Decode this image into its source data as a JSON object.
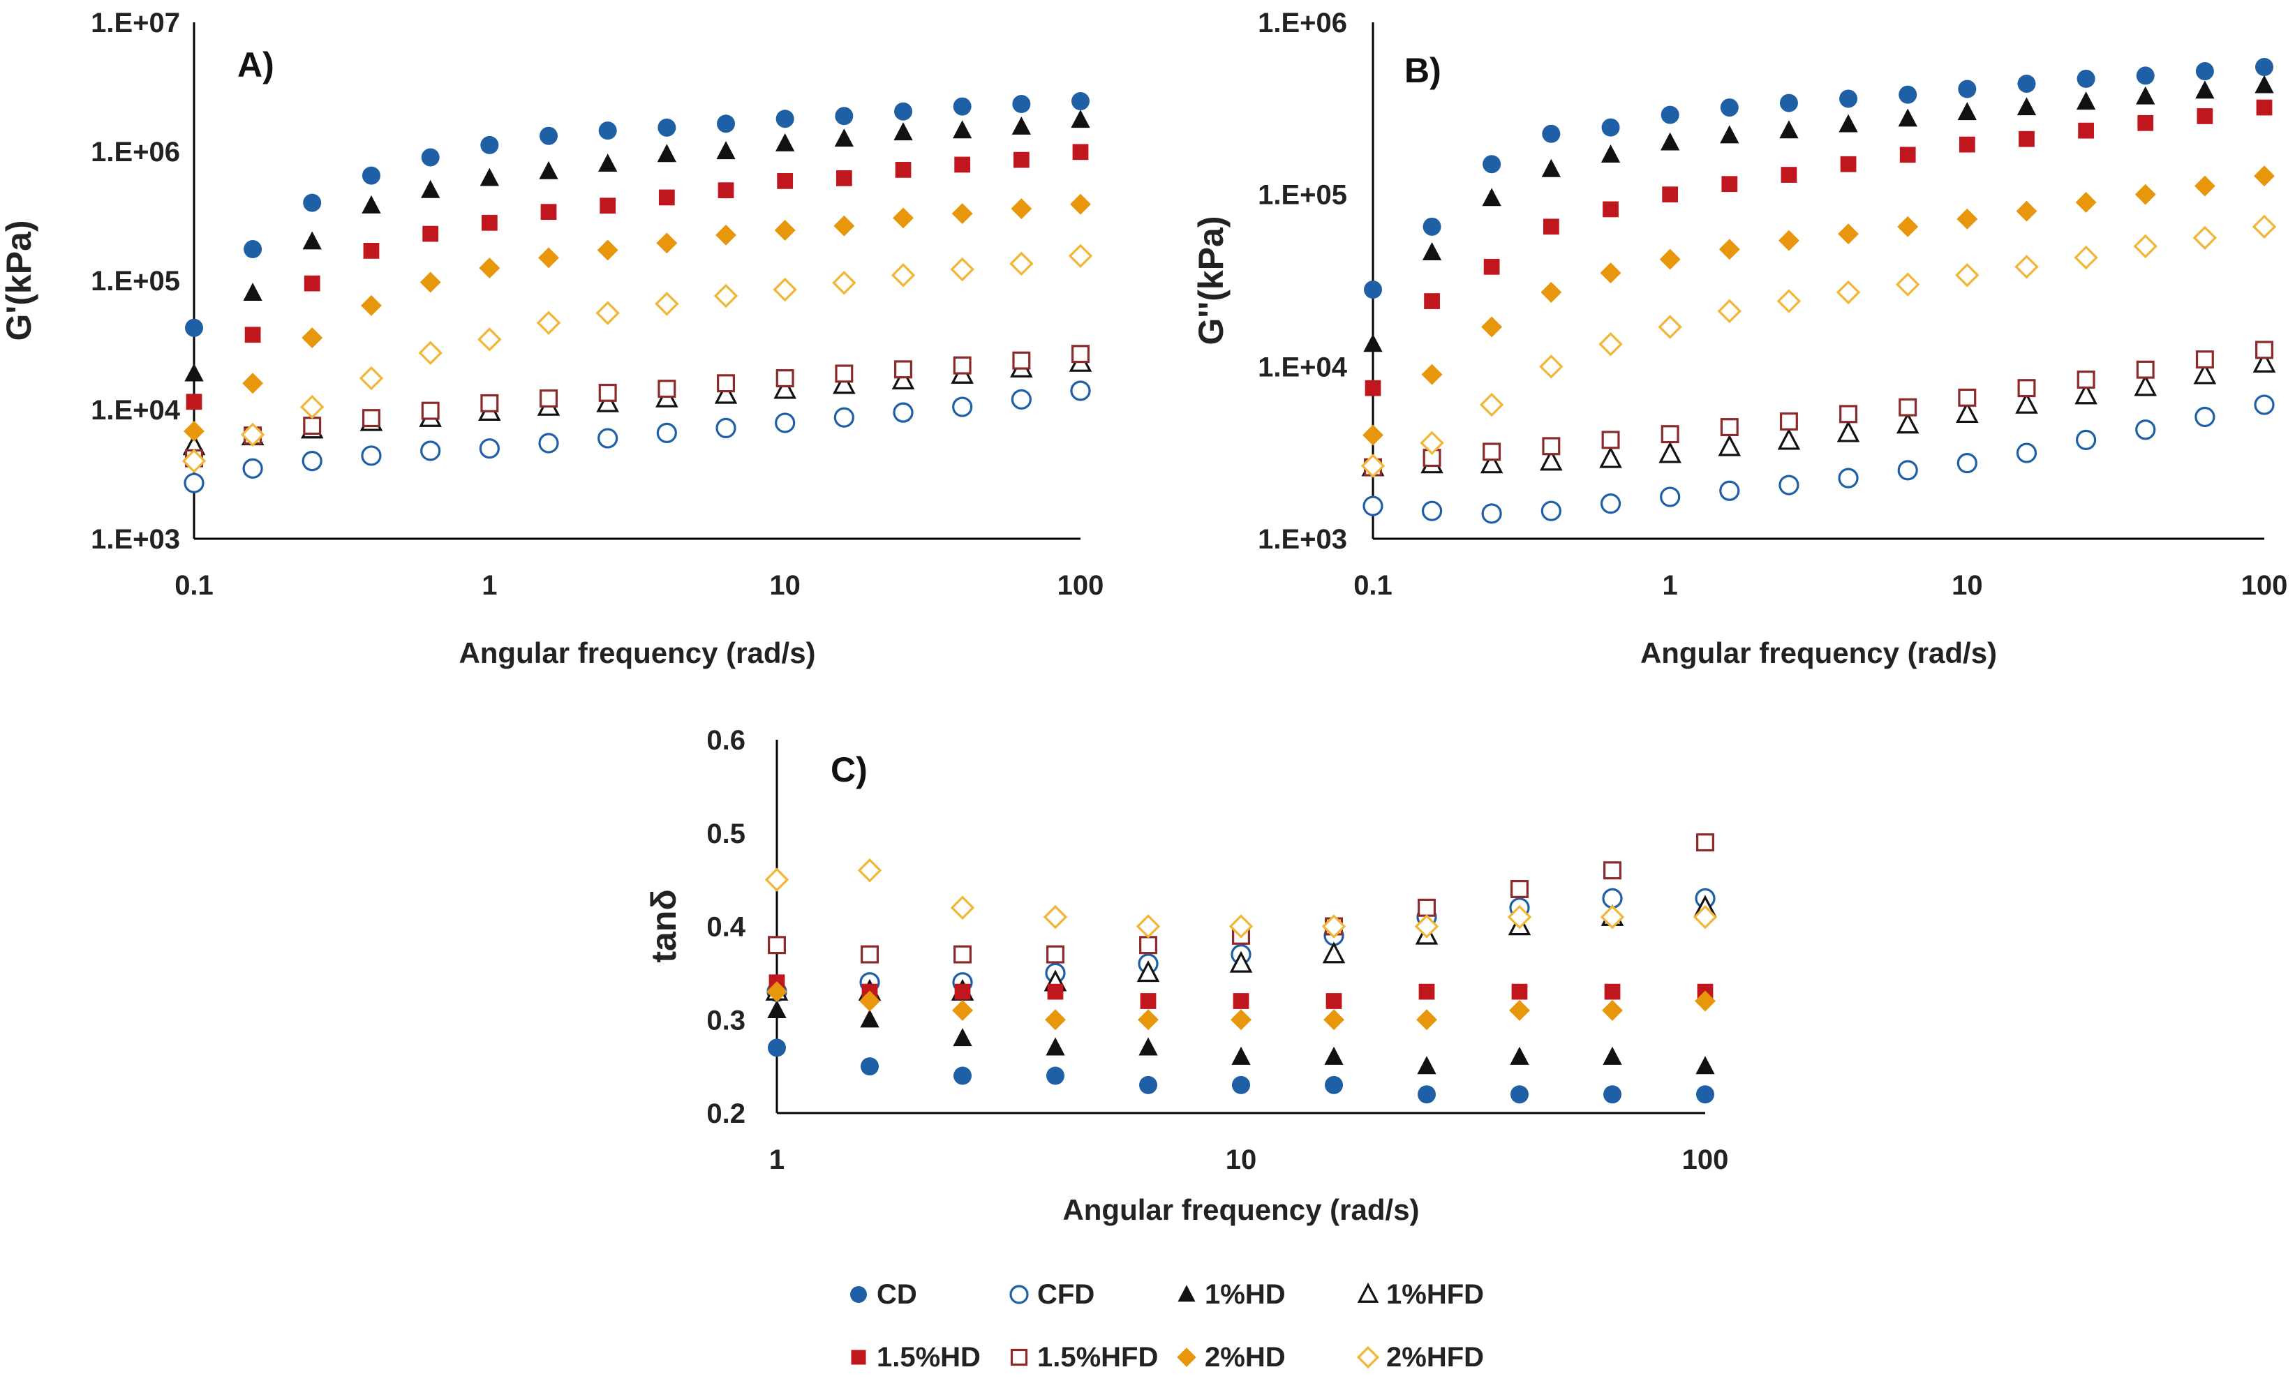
{
  "colors": {
    "blue": "#1f5fa6",
    "black": "#111111",
    "red": "#c0161e",
    "darkred": "#8b2a2a",
    "orange": "#e8960c",
    "gold": "#f2b535"
  },
  "chart_data": [
    {
      "id": "A",
      "type": "scatter",
      "panel_label": "A)",
      "title": "",
      "xlabel": "Angular frequency (rad/s)",
      "ylabel": "G'(kPa)",
      "xscale": "log",
      "yscale": "log",
      "xlim": [
        0.1,
        100
      ],
      "ylim": [
        1000,
        10000000
      ],
      "xticks": [
        0.1,
        1,
        10,
        100
      ],
      "xtick_labels": [
        "0.1",
        "1",
        "10",
        "100"
      ],
      "yticks": [
        1000,
        10000,
        100000,
        1000000,
        10000000
      ],
      "ytick_labels": [
        "1.E+03",
        "1.E+04",
        "1.E+05",
        "1.E+06",
        "1.E+07"
      ],
      "x": [
        0.1,
        0.158,
        0.251,
        0.398,
        0.631,
        1,
        1.585,
        2.512,
        3.981,
        6.31,
        10,
        15.85,
        25.12,
        39.81,
        63.1,
        100
      ],
      "series": [
        {
          "name": "CD",
          "values": [
            43000,
            175000,
            400000,
            650000,
            900000,
            1120000,
            1320000,
            1450000,
            1530000,
            1640000,
            1790000,
            1880000,
            2040000,
            2230000,
            2330000,
            2450000
          ]
        },
        {
          "name": "CFD",
          "values": [
            2700,
            3500,
            4000,
            4400,
            4800,
            5000,
            5500,
            6000,
            6600,
            7200,
            7900,
            8700,
            9500,
            10500,
            12000,
            14000
          ]
        },
        {
          "name": "1%HD",
          "values": [
            19000,
            80000,
            200000,
            380000,
            500000,
            620000,
            700000,
            800000,
            950000,
            1000000,
            1150000,
            1250000,
            1400000,
            1450000,
            1550000,
            1750000
          ]
        },
        {
          "name": "1%HFD",
          "values": [
            5200,
            6200,
            7000,
            8000,
            8600,
            9600,
            10500,
            11200,
            12200,
            13000,
            14200,
            15500,
            16800,
            18600,
            20800,
            23000
          ]
        },
        {
          "name": "1.5%HD",
          "values": [
            11500,
            38000,
            95000,
            170000,
            230000,
            280000,
            340000,
            380000,
            440000,
            500000,
            590000,
            620000,
            720000,
            790000,
            860000,
            990000
          ]
        },
        {
          "name": "1.5%HFD",
          "values": [
            4200,
            6300,
            7500,
            8600,
            9800,
            11200,
            12200,
            13500,
            14500,
            16000,
            17500,
            19000,
            20500,
            22000,
            24000,
            27000
          ]
        },
        {
          "name": "2%HD",
          "values": [
            6800,
            16000,
            36000,
            64000,
            97000,
            125000,
            150000,
            172000,
            195000,
            225000,
            245000,
            265000,
            305000,
            330000,
            360000,
            390000
          ]
        },
        {
          "name": "2%HFD",
          "values": [
            4000,
            6400,
            10500,
            17500,
            27500,
            35000,
            47000,
            56000,
            66000,
            76000,
            85000,
            96000,
            110000,
            122000,
            135000,
            155000
          ]
        }
      ]
    },
    {
      "id": "B",
      "type": "scatter",
      "panel_label": "B)",
      "title": "",
      "xlabel": "Angular frequency (rad/s)",
      "ylabel": "G''(kPa)",
      "xscale": "log",
      "yscale": "log",
      "xlim": [
        0.1,
        100
      ],
      "ylim": [
        1000,
        1000000
      ],
      "xticks": [
        0.1,
        1,
        10,
        100
      ],
      "xtick_labels": [
        "0.1",
        "1",
        "10",
        "100"
      ],
      "yticks": [
        1000,
        10000,
        100000,
        1000000
      ],
      "ytick_labels": [
        "1.E+03",
        "1.E+04",
        "1.E+05",
        "1.E+06"
      ],
      "x": [
        0.1,
        0.158,
        0.251,
        0.398,
        0.631,
        1,
        1.585,
        2.512,
        3.981,
        6.31,
        10,
        15.85,
        25.12,
        39.81,
        63.1,
        100
      ],
      "series": [
        {
          "name": "CD",
          "values": [
            28000,
            65000,
            150000,
            225000,
            245000,
            290000,
            320000,
            340000,
            360000,
            380000,
            410000,
            440000,
            470000,
            490000,
            520000,
            550000
          ]
        },
        {
          "name": "CFD",
          "values": [
            1550,
            1450,
            1400,
            1450,
            1600,
            1750,
            1900,
            2050,
            2250,
            2500,
            2750,
            3150,
            3750,
            4300,
            5100,
            6000
          ]
        },
        {
          "name": "1%HD",
          "values": [
            13500,
            46000,
            95000,
            140000,
            170000,
            200000,
            220000,
            235000,
            255000,
            275000,
            300000,
            320000,
            345000,
            370000,
            400000,
            430000
          ]
        },
        {
          "name": "1%HFD",
          "values": [
            2600,
            2700,
            2700,
            2800,
            2900,
            3100,
            3400,
            3700,
            4100,
            4600,
            5300,
            6000,
            6800,
            7600,
            8900,
            10400
          ]
        },
        {
          "name": "1.5%HD",
          "values": [
            7500,
            24000,
            38000,
            65000,
            82000,
            100000,
            115000,
            130000,
            150000,
            170000,
            195000,
            210000,
            235000,
            260000,
            285000,
            320000
          ]
        },
        {
          "name": "1.5%HFD",
          "values": [
            2600,
            2950,
            3200,
            3450,
            3750,
            4050,
            4450,
            4800,
            5300,
            5800,
            6600,
            7500,
            8400,
            9600,
            11000,
            12500
          ]
        },
        {
          "name": "2%HD",
          "values": [
            4000,
            9000,
            17000,
            27000,
            35000,
            42000,
            48000,
            54000,
            59000,
            65000,
            72000,
            80000,
            90000,
            100000,
            112000,
            128000
          ]
        },
        {
          "name": "2%HFD",
          "values": [
            2650,
            3600,
            6000,
            10000,
            13500,
            17000,
            21000,
            24000,
            27000,
            30000,
            34000,
            38000,
            43000,
            50000,
            56000,
            65000
          ]
        }
      ]
    },
    {
      "id": "C",
      "type": "scatter",
      "panel_label": "C)",
      "title": "",
      "xlabel": "Angular frequency (rad/s)",
      "ylabel": "tanδ",
      "xscale": "log",
      "yscale": "linear",
      "xlim": [
        1,
        100
      ],
      "ylim": [
        0.2,
        0.6
      ],
      "xticks": [
        1,
        10,
        100
      ],
      "xtick_labels": [
        "1",
        "10",
        "100"
      ],
      "yticks": [
        0.2,
        0.3,
        0.4,
        0.5,
        0.6
      ],
      "ytick_labels": [
        "0.2",
        "0.3",
        "0.4",
        "0.5",
        "0.6"
      ],
      "x": [
        1,
        1.585,
        2.512,
        3.981,
        6.31,
        10,
        15.85,
        25.12,
        39.81,
        63.1,
        100
      ],
      "series": [
        {
          "name": "CD",
          "values": [
            0.27,
            0.25,
            0.24,
            0.24,
            0.23,
            0.23,
            0.23,
            0.22,
            0.22,
            0.22,
            0.22
          ]
        },
        {
          "name": "CFD",
          "values": [
            0.33,
            0.34,
            0.34,
            0.35,
            0.36,
            0.37,
            0.39,
            0.41,
            0.42,
            0.43,
            0.43
          ]
        },
        {
          "name": "1%HD",
          "values": [
            0.31,
            0.3,
            0.28,
            0.27,
            0.27,
            0.26,
            0.26,
            0.25,
            0.26,
            0.26,
            0.25
          ]
        },
        {
          "name": "1%HFD",
          "values": [
            0.33,
            0.33,
            0.33,
            0.34,
            0.35,
            0.36,
            0.37,
            0.39,
            0.4,
            0.41,
            0.42
          ]
        },
        {
          "name": "1.5%HD",
          "values": [
            0.34,
            0.33,
            0.33,
            0.33,
            0.32,
            0.32,
            0.32,
            0.33,
            0.33,
            0.33,
            0.33
          ]
        },
        {
          "name": "1.5%HFD",
          "values": [
            0.38,
            0.37,
            0.37,
            0.37,
            0.38,
            0.39,
            0.4,
            0.42,
            0.44,
            0.46,
            0.49
          ]
        },
        {
          "name": "2%HD",
          "values": [
            0.33,
            0.32,
            0.31,
            0.3,
            0.3,
            0.3,
            0.3,
            0.3,
            0.31,
            0.31,
            0.32
          ]
        },
        {
          "name": "2%HFD",
          "values": [
            0.45,
            0.46,
            0.42,
            0.41,
            0.4,
            0.4,
            0.4,
            0.4,
            0.41,
            0.41,
            0.41
          ]
        }
      ]
    }
  ],
  "legend": [
    {
      "name": "CD",
      "marker": "circle",
      "filled": true,
      "color": "#1f5fa6"
    },
    {
      "name": "CFD",
      "marker": "circle",
      "filled": false,
      "color": "#1f5fa6"
    },
    {
      "name": "1%HD",
      "marker": "triangle",
      "filled": true,
      "color": "#111111"
    },
    {
      "name": "1%HFD",
      "marker": "triangle",
      "filled": false,
      "color": "#111111"
    },
    {
      "name": "1.5%HD",
      "marker": "square",
      "filled": true,
      "color": "#c0161e"
    },
    {
      "name": "1.5%HFD",
      "marker": "square",
      "filled": false,
      "color": "#8b2a2a"
    },
    {
      "name": "2%HD",
      "marker": "diamond",
      "filled": true,
      "color": "#e8960c"
    },
    {
      "name": "2%HFD",
      "marker": "diamond",
      "filled": false,
      "color": "#f2b535"
    }
  ]
}
